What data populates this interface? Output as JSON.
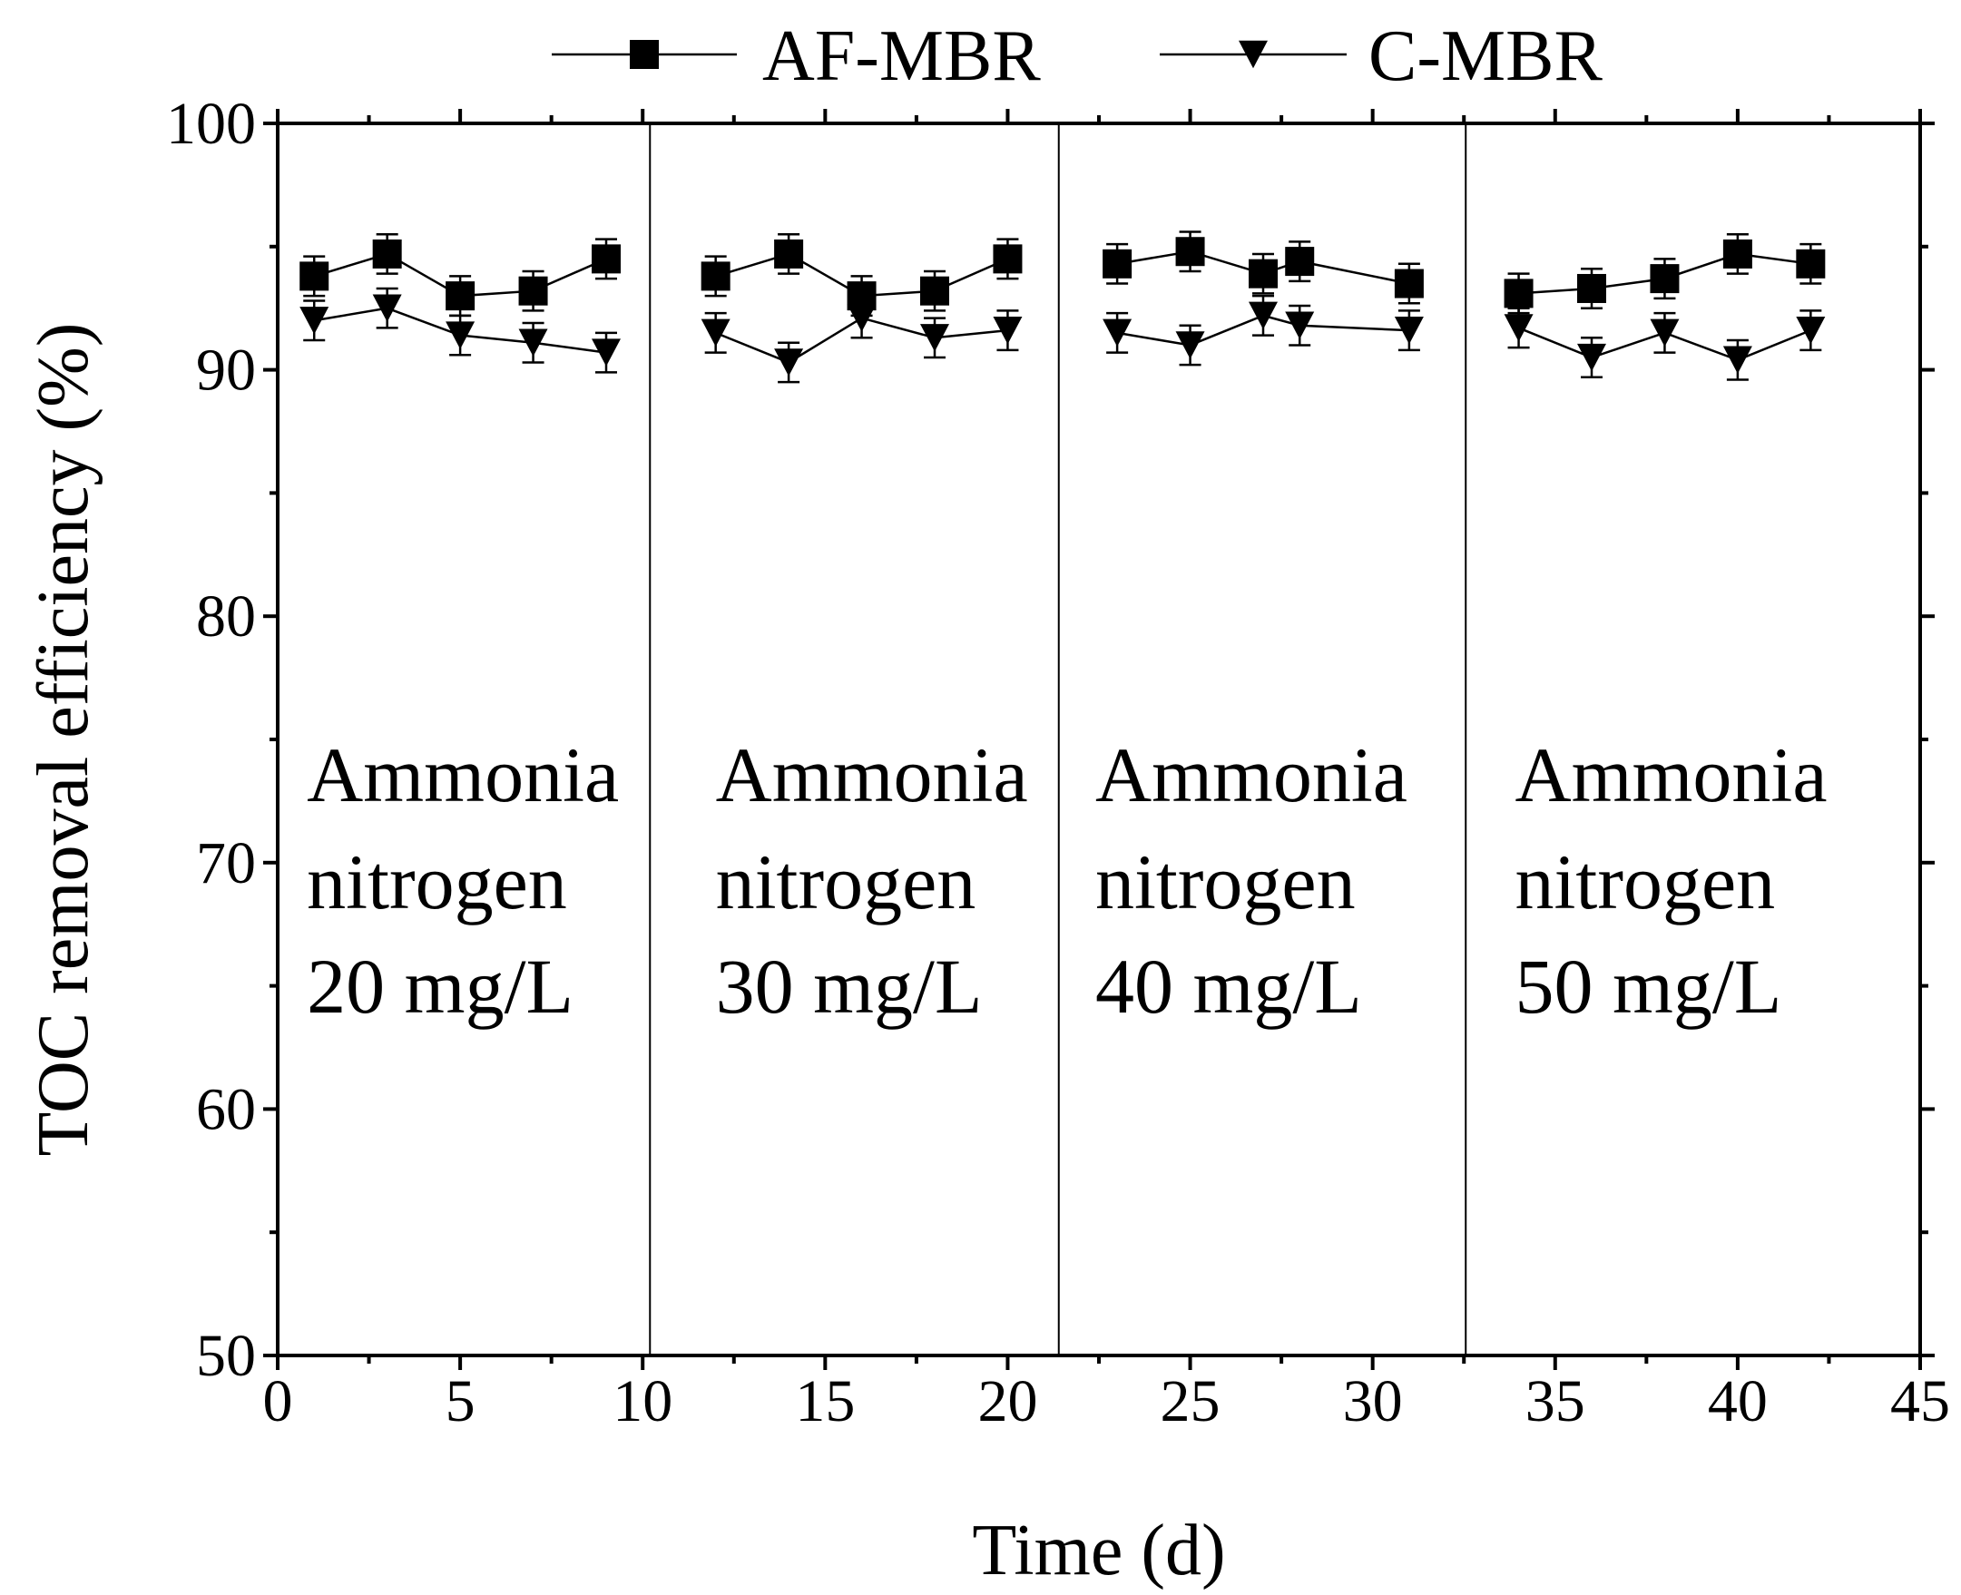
{
  "chart_data": {
    "type": "line",
    "xlabel": "Time (d)",
    "ylabel": "TOC removal efficiency (%)",
    "xlim": [
      0,
      45
    ],
    "ylim": [
      50,
      100
    ],
    "x_major_ticks": [
      0,
      5,
      10,
      15,
      20,
      25,
      30,
      35,
      40,
      45
    ],
    "x_tick_labels": [
      "0",
      "5",
      "10",
      "15",
      "20",
      "25",
      "30",
      "35",
      "40",
      "45"
    ],
    "y_major_ticks": [
      50,
      60,
      70,
      80,
      90,
      100
    ],
    "y_tick_labels": [
      "50",
      "60",
      "70",
      "80",
      "90",
      "100"
    ],
    "legend_position": "top-center",
    "phase_dividers_x": [
      10.2,
      21.4,
      32.55
    ],
    "phases": [
      {
        "line1": "Ammonia",
        "line2": "nitrogen",
        "line3": "20 mg/L",
        "label_x": 0.8
      },
      {
        "line1": "Ammonia",
        "line2": "nitrogen",
        "line3": "30 mg/L",
        "label_x": 12.0
      },
      {
        "line1": "Ammonia",
        "line2": "nitrogen",
        "line3": "40 mg/L",
        "label_x": 22.4
      },
      {
        "line1": "Ammonia",
        "line2": "nitrogen",
        "line3": "50 mg/L",
        "label_x": 33.9
      }
    ],
    "series": [
      {
        "name": "AF-MBR",
        "marker": "square",
        "segments": [
          {
            "x": [
              1,
              3,
              5,
              7,
              9
            ],
            "y": [
              93.8,
              94.7,
              93.0,
              93.2,
              94.5
            ],
            "err": [
              0.8,
              0.8,
              0.8,
              0.8,
              0.8
            ]
          },
          {
            "x": [
              12,
              14,
              16,
              18,
              20
            ],
            "y": [
              93.8,
              94.7,
              93.0,
              93.2,
              94.5
            ],
            "err": [
              0.8,
              0.8,
              0.8,
              0.8,
              0.8
            ]
          },
          {
            "x": [
              23,
              25,
              27,
              28,
              31
            ],
            "y": [
              94.3,
              94.8,
              93.9,
              94.4,
              93.5
            ],
            "err": [
              0.8,
              0.8,
              0.8,
              0.8,
              0.8
            ]
          },
          {
            "x": [
              34,
              36,
              38,
              40,
              42
            ],
            "y": [
              93.1,
              93.3,
              93.7,
              94.7,
              94.3
            ],
            "err": [
              0.8,
              0.8,
              0.8,
              0.8,
              0.8
            ]
          }
        ]
      },
      {
        "name": "C-MBR",
        "marker": "triangle-down",
        "segments": [
          {
            "x": [
              1,
              3,
              5,
              7,
              9
            ],
            "y": [
              92.0,
              92.5,
              91.4,
              91.1,
              90.7
            ],
            "err": [
              0.8,
              0.8,
              0.8,
              0.8,
              0.8
            ]
          },
          {
            "x": [
              12,
              14,
              16,
              18,
              20
            ],
            "y": [
              91.5,
              90.3,
              92.1,
              91.3,
              91.6
            ],
            "err": [
              0.8,
              0.8,
              0.8,
              0.8,
              0.8
            ]
          },
          {
            "x": [
              23,
              25,
              27,
              28,
              31
            ],
            "y": [
              91.5,
              91.0,
              92.2,
              91.8,
              91.6
            ],
            "err": [
              0.8,
              0.8,
              0.8,
              0.8,
              0.8
            ]
          },
          {
            "x": [
              34,
              36,
              38,
              40,
              42
            ],
            "y": [
              91.7,
              90.5,
              91.5,
              90.4,
              91.6
            ],
            "err": [
              0.8,
              0.8,
              0.8,
              0.8,
              0.8
            ]
          }
        ]
      }
    ]
  }
}
